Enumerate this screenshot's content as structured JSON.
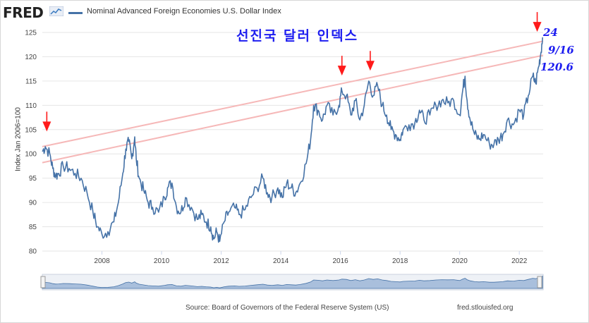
{
  "brand": {
    "name": "FRED"
  },
  "legend": {
    "label": "Nominal Advanced Foreign Economies U.S. Dollar Index",
    "color": "#4572a7"
  },
  "annotations": {
    "title_korean": "선진국 달러 인덱스",
    "date_top": "24",
    "date_label": "9/16",
    "value_label": "120.6",
    "color": "#1d1df0",
    "arrow_color": "#ff1a1a",
    "trend_color": "#f6b8b8"
  },
  "footer": {
    "source": "Source: Board of Governors of the Federal Reserve System (US)",
    "url": "fred.stlouisfed.org"
  },
  "chart_data": {
    "type": "line",
    "title": "Nominal Advanced Foreign Economies U.S. Dollar Index",
    "xlabel": "",
    "ylabel": "Index Jan 2006=100",
    "xlim": [
      2006.0,
      2022.8
    ],
    "ylim": [
      80,
      125
    ],
    "x_ticks": [
      2008,
      2010,
      2012,
      2014,
      2016,
      2018,
      2020,
      2022
    ],
    "y_ticks": [
      80,
      85,
      90,
      95,
      100,
      105,
      110,
      115,
      120,
      125
    ],
    "series": [
      {
        "name": "Nominal Advanced Foreign Economies U.S. Dollar Index",
        "x": [
          2006.0,
          2006.1,
          2006.25,
          2006.35,
          2006.45,
          2006.55,
          2006.7,
          2006.9,
          2007.1,
          2007.3,
          2007.5,
          2007.7,
          2007.85,
          2008.0,
          2008.2,
          2008.4,
          2008.55,
          2008.7,
          2008.8,
          2008.9,
          2009.0,
          2009.1,
          2009.15,
          2009.25,
          2009.4,
          2009.55,
          2009.7,
          2009.9,
          2010.1,
          2010.2,
          2010.35,
          2010.5,
          2010.65,
          2010.8,
          2011.0,
          2011.2,
          2011.35,
          2011.5,
          2011.65,
          2011.75,
          2011.85,
          2011.95,
          2012.1,
          2012.25,
          2012.45,
          2012.6,
          2012.8,
          2013.0,
          2013.2,
          2013.4,
          2013.55,
          2013.7,
          2013.9,
          2014.05,
          2014.2,
          2014.35,
          2014.5,
          2014.65,
          2014.85,
          2015.0,
          2015.1,
          2015.25,
          2015.4,
          2015.55,
          2015.75,
          2015.95,
          2016.05,
          2016.2,
          2016.35,
          2016.5,
          2016.65,
          2016.8,
          2016.95,
          2017.1,
          2017.25,
          2017.4,
          2017.55,
          2017.7,
          2017.85,
          2018.0,
          2018.1,
          2018.3,
          2018.5,
          2018.65,
          2018.8,
          2019.0,
          2019.2,
          2019.4,
          2019.6,
          2019.8,
          2020.0,
          2020.1,
          2020.18,
          2020.25,
          2020.35,
          2020.5,
          2020.65,
          2020.8,
          2021.0,
          2021.15,
          2021.3,
          2021.45,
          2021.6,
          2021.8,
          2022.0,
          2022.15,
          2022.3,
          2022.45,
          2022.55,
          2022.65,
          2022.72,
          2022.78
        ],
        "values": [
          100.5,
          101.5,
          100,
          97,
          95.5,
          96,
          97.5,
          97,
          96,
          95,
          92,
          88,
          85,
          83.5,
          84,
          86,
          90,
          96,
          101,
          102.5,
          99,
          103.5,
          99,
          95,
          92.5,
          90,
          89,
          88,
          91,
          93,
          94,
          89,
          88,
          91,
          89,
          86.5,
          87.5,
          86,
          85,
          82.5,
          84,
          82,
          86,
          88,
          89,
          87.5,
          88.5,
          91,
          93,
          95,
          92,
          91,
          93,
          91,
          94,
          93,
          92,
          94,
          98,
          103,
          110,
          109,
          107,
          110,
          108,
          110,
          113,
          112,
          108,
          111,
          107,
          110,
          115,
          112,
          114,
          110,
          108,
          105,
          104,
          103,
          105,
          106,
          106.5,
          109,
          107,
          108,
          110,
          111,
          110.5,
          111,
          108,
          113,
          116,
          111,
          107,
          104,
          103,
          104,
          102,
          102,
          103,
          104,
          107,
          106,
          109,
          108,
          112,
          116,
          114.5,
          118,
          120.6,
          124
        ]
      }
    ]
  }
}
